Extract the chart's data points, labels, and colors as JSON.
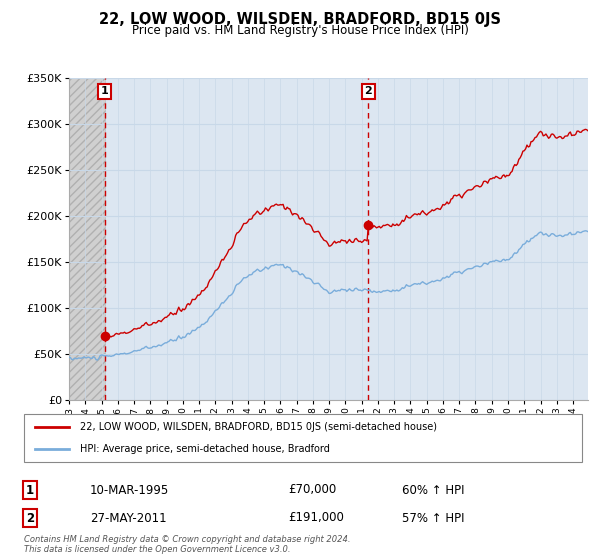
{
  "title": "22, LOW WOOD, WILSDEN, BRADFORD, BD15 0JS",
  "subtitle": "Price paid vs. HM Land Registry's House Price Index (HPI)",
  "purchase1_price": 70000,
  "purchase2_price": 191000,
  "p1_year": 1995.19,
  "p2_year": 2011.41,
  "legend_line1": "22, LOW WOOD, WILSDEN, BRADFORD, BD15 0JS (semi-detached house)",
  "legend_line2": "HPI: Average price, semi-detached house, Bradford",
  "table_row1": [
    "1",
    "10-MAR-1995",
    "£70,000",
    "60% ↑ HPI"
  ],
  "table_row2": [
    "2",
    "27-MAY-2011",
    "£191,000",
    "57% ↑ HPI"
  ],
  "footer": "Contains HM Land Registry data © Crown copyright and database right 2024.\nThis data is licensed under the Open Government Licence v3.0.",
  "ylim": [
    0,
    350000
  ],
  "yticks": [
    0,
    50000,
    100000,
    150000,
    200000,
    250000,
    300000,
    350000
  ],
  "property_color": "#cc0000",
  "hpi_color": "#7aaddb",
  "grid_color": "#c8d8e8",
  "background_color": "#dce6f1",
  "hatch_color": "#c8c8c8",
  "xlim_start": 1993.0,
  "xlim_end": 2024.92
}
